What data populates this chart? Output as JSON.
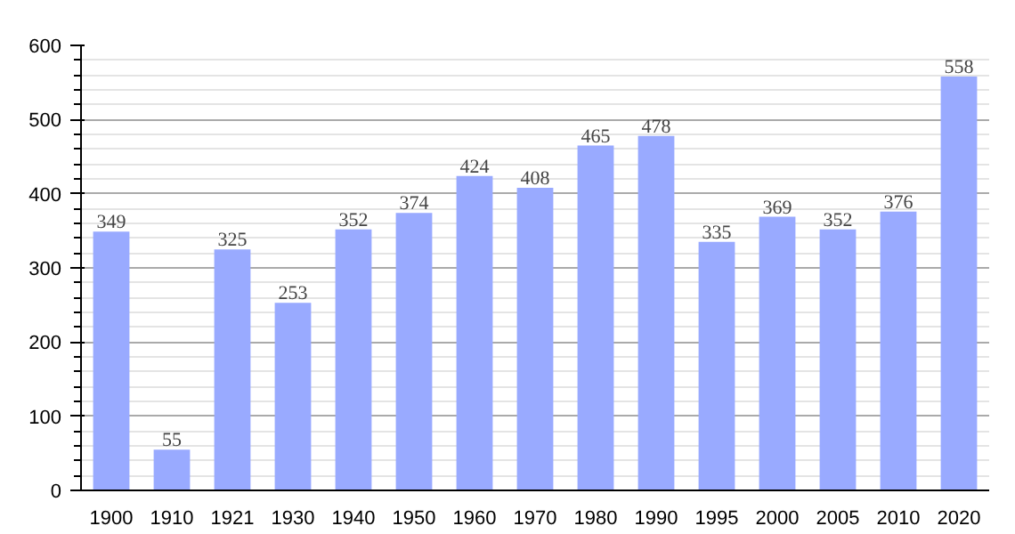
{
  "chart_data": {
    "type": "bar",
    "categories": [
      "1900",
      "1910",
      "1921",
      "1930",
      "1940",
      "1950",
      "1960",
      "1970",
      "1980",
      "1990",
      "1995",
      "2000",
      "2005",
      "2010",
      "2020"
    ],
    "values": [
      349,
      55,
      325,
      253,
      352,
      374,
      424,
      408,
      465,
      478,
      335,
      369,
      352,
      376,
      558
    ],
    "color": "#99aaff",
    "ylim": [
      0,
      600
    ],
    "yticks": [
      0,
      100,
      200,
      300,
      400,
      500,
      600
    ],
    "grid": "y",
    "data_labels": true
  }
}
